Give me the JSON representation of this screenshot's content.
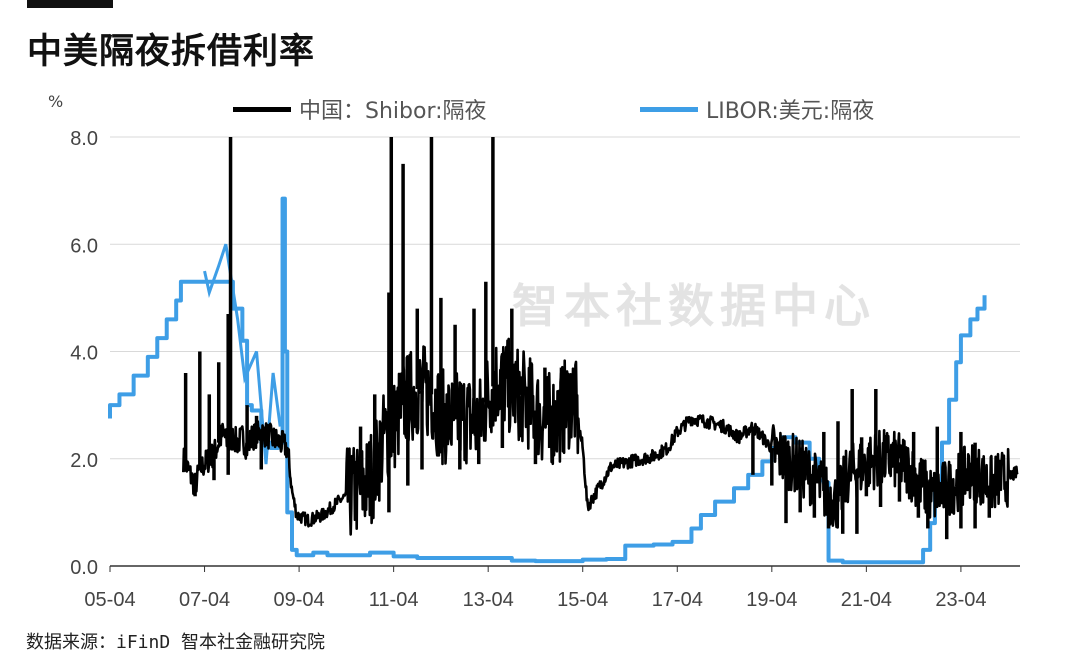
{
  "title": "中美隔夜拆借利率",
  "unit": "%",
  "watermark": "智本社数据中心",
  "source": "数据来源：iFinD 智本社金融研究院",
  "colors": {
    "shibor": "#000000",
    "libor": "#3e9ee6",
    "grid": "#d9d9d9",
    "axis": "#333333"
  },
  "chart_data": {
    "type": "line",
    "title": "中美隔夜拆借利率",
    "ylabel": "%",
    "xlabel": "",
    "ylim": [
      0,
      8
    ],
    "yticks": [
      "0.0",
      "2.0",
      "4.0",
      "6.0",
      "8.0"
    ],
    "xlim": [
      2005.0,
      2024.25
    ],
    "xticks": [
      {
        "x": 2005,
        "label": "05-04"
      },
      {
        "x": 2007,
        "label": "07-04"
      },
      {
        "x": 2009,
        "label": "09-04"
      },
      {
        "x": 2011,
        "label": "11-04"
      },
      {
        "x": 2013,
        "label": "13-04"
      },
      {
        "x": 2015,
        "label": "15-04"
      },
      {
        "x": 2017,
        "label": "17-04"
      },
      {
        "x": 2019,
        "label": "19-04"
      },
      {
        "x": 2021,
        "label": "21-04"
      },
      {
        "x": 2023,
        "label": "23-04"
      }
    ],
    "grid": true,
    "legend_position": "top",
    "series": [
      {
        "name": "中国：Shibor:隔夜",
        "points": [
          [
            2006.55,
            2.0
          ],
          [
            2006.7,
            1.7
          ],
          [
            2006.8,
            1.5
          ],
          [
            2006.9,
            1.8
          ],
          [
            2007.0,
            1.9
          ],
          [
            2007.2,
            2.1
          ],
          [
            2007.3,
            2.3
          ],
          [
            2007.4,
            2.5
          ],
          [
            2007.5,
            2.2
          ],
          [
            2007.6,
            2.4
          ],
          [
            2007.7,
            2.3
          ],
          [
            2007.8,
            2.4
          ],
          [
            2007.9,
            2.2
          ],
          [
            2008.0,
            2.4
          ],
          [
            2008.2,
            2.5
          ],
          [
            2008.4,
            2.4
          ],
          [
            2008.6,
            2.3
          ],
          [
            2008.75,
            2.2
          ],
          [
            2008.85,
            1.4
          ],
          [
            2008.95,
            0.95
          ],
          [
            2009.2,
            0.85
          ],
          [
            2009.5,
            0.95
          ],
          [
            2009.7,
            1.1
          ],
          [
            2009.9,
            1.25
          ],
          [
            2010.2,
            1.4
          ],
          [
            2010.4,
            1.5
          ],
          [
            2010.6,
            1.8
          ],
          [
            2010.8,
            2.4
          ],
          [
            2011.0,
            2.6
          ],
          [
            2011.2,
            3.0
          ],
          [
            2011.5,
            3.3
          ],
          [
            2011.8,
            3.2
          ],
          [
            2012.0,
            2.8
          ],
          [
            2012.2,
            2.7
          ],
          [
            2012.5,
            2.8
          ],
          [
            2012.8,
            2.6
          ],
          [
            2013.0,
            3.2
          ],
          [
            2013.2,
            3.5
          ],
          [
            2013.5,
            3.3
          ],
          [
            2013.8,
            3.1
          ],
          [
            2014.0,
            2.9
          ],
          [
            2014.2,
            2.7
          ],
          [
            2014.5,
            2.8
          ],
          [
            2014.8,
            3.2
          ],
          [
            2015.0,
            2.2
          ],
          [
            2015.1,
            1.1
          ],
          [
            2015.3,
            1.4
          ],
          [
            2015.6,
            1.85
          ],
          [
            2016.0,
            1.95
          ],
          [
            2016.5,
            2.05
          ],
          [
            2016.8,
            2.2
          ],
          [
            2017.0,
            2.5
          ],
          [
            2017.3,
            2.75
          ],
          [
            2017.6,
            2.7
          ],
          [
            2018.0,
            2.6
          ],
          [
            2018.3,
            2.4
          ],
          [
            2018.6,
            2.6
          ],
          [
            2018.9,
            2.3
          ],
          [
            2019.1,
            2.1
          ],
          [
            2019.3,
            2.0
          ],
          [
            2019.5,
            1.9
          ],
          [
            2019.8,
            1.7
          ],
          [
            2020.0,
            1.5
          ],
          [
            2020.2,
            1.3
          ],
          [
            2020.4,
            1.2
          ],
          [
            2020.6,
            1.7
          ],
          [
            2020.8,
            1.8
          ],
          [
            2021.0,
            1.9
          ],
          [
            2021.2,
            2.0
          ],
          [
            2021.5,
            2.0
          ],
          [
            2021.8,
            1.9
          ],
          [
            2022.0,
            1.7
          ],
          [
            2022.2,
            1.5
          ],
          [
            2022.4,
            1.3
          ],
          [
            2022.6,
            1.4
          ],
          [
            2022.8,
            1.5
          ],
          [
            2023.0,
            1.6
          ],
          [
            2023.2,
            1.8
          ],
          [
            2023.4,
            1.7
          ],
          [
            2023.6,
            1.5
          ],
          [
            2023.8,
            1.6
          ],
          [
            2024.0,
            1.65
          ],
          [
            2024.2,
            1.75
          ]
        ],
        "spikes": [
          [
            2006.6,
            3.6
          ],
          [
            2006.9,
            4.0
          ],
          [
            2007.1,
            3.2
          ],
          [
            2007.3,
            3.8
          ],
          [
            2007.5,
            4.7
          ],
          [
            2007.55,
            8.0
          ],
          [
            2007.9,
            3.0
          ],
          [
            2008.1,
            2.8
          ],
          [
            2010.3,
            2.6
          ],
          [
            2010.6,
            3.2
          ],
          [
            2010.9,
            5.1
          ],
          [
            2010.95,
            8.0
          ],
          [
            2011.2,
            7.5
          ],
          [
            2011.5,
            4.8
          ],
          [
            2011.8,
            8.0
          ],
          [
            2012.0,
            5.0
          ],
          [
            2012.3,
            4.5
          ],
          [
            2012.7,
            4.8
          ],
          [
            2012.95,
            5.3
          ],
          [
            2013.1,
            8.0
          ],
          [
            2013.5,
            4.8
          ],
          [
            2013.9,
            3.8
          ],
          [
            2014.2,
            3.7
          ],
          [
            2014.55,
            3.7
          ],
          [
            2014.8,
            3.6
          ],
          [
            2020.1,
            2.5
          ],
          [
            2020.4,
            2.7
          ],
          [
            2020.7,
            3.3
          ],
          [
            2020.9,
            2.4
          ],
          [
            2021.2,
            3.3
          ],
          [
            2022.0,
            2.5
          ],
          [
            2022.5,
            2.6
          ],
          [
            2023.0,
            2.5
          ],
          [
            2023.3,
            2.3
          ]
        ],
        "dips": [
          [
            2006.8,
            1.3
          ],
          [
            2007.2,
            1.6
          ],
          [
            2007.5,
            1.7
          ],
          [
            2008.2,
            1.8
          ],
          [
            2010.4,
            1.2
          ],
          [
            2010.9,
            1.0
          ],
          [
            2011.3,
            1.5
          ],
          [
            2011.6,
            1.8
          ],
          [
            2012.0,
            2.1
          ],
          [
            2012.4,
            1.8
          ],
          [
            2012.8,
            1.9
          ],
          [
            2013.3,
            2.2
          ],
          [
            2013.7,
            2.4
          ],
          [
            2014.0,
            1.9
          ],
          [
            2014.3,
            2.2
          ],
          [
            2018.6,
            1.7
          ],
          [
            2019.0,
            1.5
          ],
          [
            2019.3,
            0.8
          ],
          [
            2019.6,
            1.0
          ],
          [
            2019.9,
            0.9
          ],
          [
            2020.2,
            0.7
          ],
          [
            2020.5,
            0.6
          ],
          [
            2020.8,
            0.6
          ],
          [
            2021.0,
            1.3
          ],
          [
            2021.3,
            1.1
          ],
          [
            2021.7,
            1.2
          ],
          [
            2022.1,
            0.9
          ],
          [
            2022.3,
            0.7
          ],
          [
            2022.7,
            0.5
          ],
          [
            2023.0,
            0.7
          ],
          [
            2023.3,
            0.7
          ],
          [
            2023.6,
            0.9
          ]
        ]
      },
      {
        "name": "LIBOR:美元:隔夜",
        "points": [
          [
            2005.0,
            2.75
          ],
          [
            2005.0,
            3.0
          ],
          [
            2005.2,
            3.2
          ],
          [
            2005.5,
            3.55
          ],
          [
            2005.8,
            3.9
          ],
          [
            2006.0,
            4.25
          ],
          [
            2006.2,
            4.6
          ],
          [
            2006.4,
            4.95
          ],
          [
            2006.5,
            5.3
          ],
          [
            2007.0,
            5.3
          ],
          [
            2007.5,
            5.3
          ],
          [
            2007.6,
            4.8
          ],
          [
            2007.8,
            4.2
          ],
          [
            2007.9,
            3.0
          ],
          [
            2008.0,
            2.9
          ],
          [
            2008.2,
            2.3
          ],
          [
            2008.4,
            2.2
          ],
          [
            2008.55,
            2.3
          ],
          [
            2008.65,
            6.85
          ],
          [
            2008.7,
            4.0
          ],
          [
            2008.75,
            1.0
          ],
          [
            2008.85,
            0.3
          ],
          [
            2008.95,
            0.2
          ],
          [
            2009.3,
            0.25
          ],
          [
            2009.6,
            0.2
          ],
          [
            2010.0,
            0.2
          ],
          [
            2010.5,
            0.25
          ],
          [
            2011.0,
            0.18
          ],
          [
            2011.5,
            0.15
          ],
          [
            2012.0,
            0.15
          ],
          [
            2012.5,
            0.15
          ],
          [
            2013.0,
            0.15
          ],
          [
            2013.5,
            0.1
          ],
          [
            2014.0,
            0.09
          ],
          [
            2014.5,
            0.09
          ],
          [
            2015.0,
            0.12
          ],
          [
            2015.5,
            0.13
          ],
          [
            2015.9,
            0.38
          ],
          [
            2016.5,
            0.4
          ],
          [
            2016.9,
            0.45
          ],
          [
            2017.3,
            0.7
          ],
          [
            2017.5,
            0.95
          ],
          [
            2017.8,
            1.2
          ],
          [
            2018.2,
            1.45
          ],
          [
            2018.5,
            1.7
          ],
          [
            2018.8,
            1.95
          ],
          [
            2019.0,
            2.2
          ],
          [
            2019.2,
            2.4
          ],
          [
            2019.5,
            2.3
          ],
          [
            2019.8,
            2.0
          ],
          [
            2020.0,
            1.6
          ],
          [
            2020.1,
            1.55
          ],
          [
            2020.2,
            0.1
          ],
          [
            2020.5,
            0.07
          ],
          [
            2021.0,
            0.07
          ],
          [
            2021.5,
            0.07
          ],
          [
            2022.0,
            0.07
          ],
          [
            2022.2,
            0.3
          ],
          [
            2022.35,
            0.8
          ],
          [
            2022.45,
            1.55
          ],
          [
            2022.6,
            2.3
          ],
          [
            2022.75,
            3.1
          ],
          [
            2022.9,
            3.8
          ],
          [
            2023.0,
            4.3
          ],
          [
            2023.2,
            4.6
          ],
          [
            2023.35,
            4.8
          ],
          [
            2023.5,
            5.05
          ]
        ],
        "noise": [
          [
            2007.0,
            5.5
          ],
          [
            2007.1,
            5.1
          ],
          [
            2007.3,
            5.6
          ],
          [
            2007.45,
            6.0
          ],
          [
            2007.7,
            4.6
          ],
          [
            2007.85,
            3.5
          ],
          [
            2008.1,
            4.0
          ],
          [
            2008.3,
            1.9
          ],
          [
            2008.45,
            3.6
          ],
          [
            2008.6,
            2.6
          ]
        ]
      }
    ]
  },
  "legend": [
    {
      "label": "中国：Shibor:隔夜",
      "color": "#000000"
    },
    {
      "label": "LIBOR:美元:隔夜",
      "color": "#3e9ee6"
    }
  ]
}
